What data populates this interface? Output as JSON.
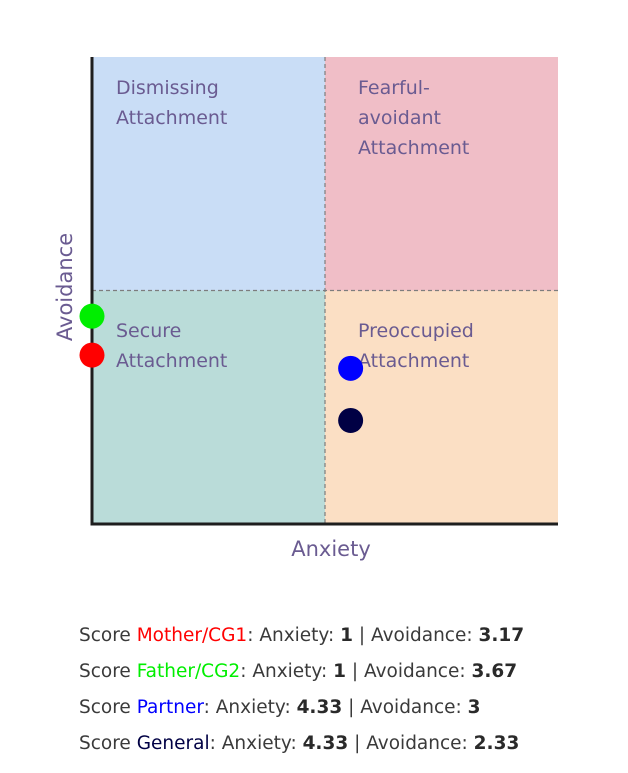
{
  "chart_data": {
    "type": "scatter",
    "xlabel": "Anxiety",
    "ylabel": "Avoidance",
    "xlim": [
      1,
      7
    ],
    "ylim": [
      1,
      7
    ],
    "midpoint": 4,
    "grid": false,
    "quadrants": [
      {
        "id": "dismissing",
        "lines": [
          "Dismissing",
          "Attachment"
        ],
        "color": "#c9ddf6"
      },
      {
        "id": "fearful",
        "lines": [
          "Fearful-",
          "avoidant",
          "Attachment"
        ],
        "color": "#f0bec7"
      },
      {
        "id": "secure",
        "lines": [
          "Secure",
          "Attachment"
        ],
        "color": "#badcd9"
      },
      {
        "id": "preoccupied",
        "lines": [
          "Preoccupied",
          "Attachment"
        ],
        "color": "#fbdfc4"
      }
    ],
    "series": [
      {
        "name": "Mother/CG1",
        "x": 1,
        "y": 3.17,
        "color": "#ff0000"
      },
      {
        "name": "Father/CG2",
        "x": 1,
        "y": 3.67,
        "color": "#00ee00"
      },
      {
        "name": "Partner",
        "x": 4.33,
        "y": 3,
        "color": "#0000ff"
      },
      {
        "name": "General",
        "x": 4.33,
        "y": 2.33,
        "color": "#000044"
      }
    ]
  },
  "scores": [
    {
      "prefix": "Score ",
      "name": "Mother/CG1",
      "color": "#ff0000",
      "anxiety_label": ": Anxiety: ",
      "anxiety": "1",
      "sep": " | Avoidance: ",
      "avoidance": "3.17"
    },
    {
      "prefix": "Score ",
      "name": "Father/CG2",
      "color": "#00ee00",
      "anxiety_label": ": Anxiety: ",
      "anxiety": "1",
      "sep": " | Avoidance: ",
      "avoidance": "3.67"
    },
    {
      "prefix": "Score ",
      "name": "Partner",
      "color": "#0000ff",
      "anxiety_label": ": Anxiety: ",
      "anxiety": "4.33",
      "sep": " | Avoidance: ",
      "avoidance": "3"
    },
    {
      "prefix": "Score ",
      "name": "General",
      "color": "#000044",
      "anxiety_label": ": Anxiety: ",
      "anxiety": "4.33",
      "sep": " | Avoidance: ",
      "avoidance": "2.33"
    }
  ]
}
